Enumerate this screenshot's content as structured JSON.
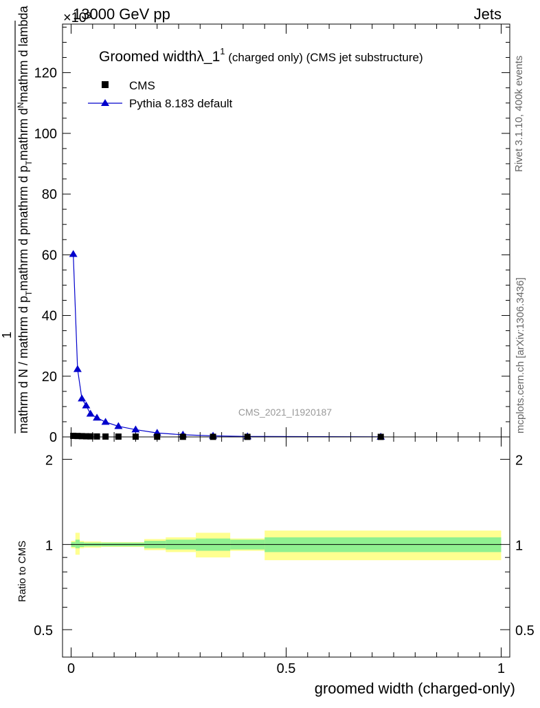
{
  "header": {
    "energy_label": "13000 GeV pp",
    "process_label": "Jets",
    "exponent_label": "×10³"
  },
  "side_labels": {
    "rivet": "Rivet 3.1.10,  400k events",
    "source": "mcplots.cern.ch [arXiv:1306.3436]"
  },
  "watermark": "CMS_2021_I1920187",
  "colors": {
    "mc_line": "#0000cc",
    "band_stat": "#90f090",
    "band_total": "#ffff90"
  },
  "chart_data": [
    {
      "type": "line",
      "panel": "main",
      "title_main": "Groomed width",
      "title_math": "λ_1",
      "title_sup": "1",
      "title_rest": " (charged only) (CMS jet substructure)",
      "xlabel": "",
      "ylabel_numerator_top": "mathrm d",
      "ylabel_numerator_N": "N",
      "ylabel_numerator_bottom": "mathrm d p",
      "ylabel_numerator_T": "T",
      "ylabel_numerator_end": "mathrm d lambda",
      "ylabel_one": "1",
      "ylabel_denominator": "mathrm d N / mathrm d p",
      "ylabel_denominator_T": "T",
      "ylabel_denominator_end": "mathrm d p",
      "xlim": [
        -0.02,
        1.02
      ],
      "ylim": [
        0,
        136
      ],
      "y_ticks": [
        0,
        20,
        40,
        60,
        80,
        100,
        120
      ],
      "y_tick_labels": [
        "0",
        "20",
        "40",
        "60",
        "80",
        "100",
        "120"
      ],
      "legend_position": "top-left",
      "series": [
        {
          "name": "CMS",
          "marker": "square",
          "x": [
            0.005,
            0.015,
            0.025,
            0.035,
            0.045,
            0.06,
            0.08,
            0.11,
            0.15,
            0.2,
            0.26,
            0.33,
            0.41,
            0.72
          ],
          "y": [
            0.35,
            0.3,
            0.25,
            0.2,
            0.18,
            0.15,
            0.12,
            0.1,
            0.08,
            0.06,
            0.04,
            0.03,
            0.02,
            0.01
          ]
        },
        {
          "name": "Pythia 8.183 default",
          "marker": "triangle",
          "x": [
            0.005,
            0.015,
            0.025,
            0.035,
            0.045,
            0.06,
            0.08,
            0.11,
            0.15,
            0.2,
            0.26,
            0.33,
            0.41,
            0.72
          ],
          "y": [
            60.2,
            22.3,
            12.6,
            10.3,
            7.6,
            6.3,
            4.9,
            3.5,
            2.4,
            1.3,
            0.7,
            0.35,
            0.15,
            0.03
          ],
          "err": [
            1.0,
            0.3,
            0.3,
            0.2,
            0.15,
            0.1,
            0.1,
            0.05,
            0.05,
            0.03,
            0.02,
            0.01,
            0.01,
            0.005
          ]
        }
      ]
    },
    {
      "type": "area",
      "panel": "ratio",
      "ylabel": "Ratio to CMS",
      "xlabel": "groomed width (charged-only)",
      "xlim": [
        -0.02,
        1.02
      ],
      "ylim": [
        0.4,
        2.4
      ],
      "log_y": true,
      "x_ticks": [
        0,
        0.5,
        1
      ],
      "x_tick_labels": [
        "0",
        "0.5",
        "1"
      ],
      "y_ticks": [
        0.5,
        1,
        2
      ],
      "y_tick_labels": [
        "0.5",
        "1",
        "2"
      ],
      "bins": [
        {
          "x0": 0.0,
          "x1": 0.01,
          "stat": [
            0.98,
            1.02
          ],
          "total": [
            0.97,
            1.03
          ]
        },
        {
          "x0": 0.01,
          "x1": 0.02,
          "stat": [
            0.97,
            1.04
          ],
          "total": [
            0.92,
            1.1
          ]
        },
        {
          "x0": 0.02,
          "x1": 0.03,
          "stat": [
            0.98,
            1.02
          ],
          "total": [
            0.97,
            1.03
          ]
        },
        {
          "x0": 0.03,
          "x1": 0.07,
          "stat": [
            0.985,
            1.015
          ],
          "total": [
            0.975,
            1.025
          ]
        },
        {
          "x0": 0.07,
          "x1": 0.17,
          "stat": [
            0.985,
            1.015
          ],
          "total": [
            0.98,
            1.02
          ]
        },
        {
          "x0": 0.17,
          "x1": 0.22,
          "stat": [
            0.97,
            1.03
          ],
          "total": [
            0.955,
            1.045
          ]
        },
        {
          "x0": 0.22,
          "x1": 0.29,
          "stat": [
            0.96,
            1.04
          ],
          "total": [
            0.94,
            1.06
          ]
        },
        {
          "x0": 0.29,
          "x1": 0.37,
          "stat": [
            0.95,
            1.05
          ],
          "total": [
            0.9,
            1.1
          ]
        },
        {
          "x0": 0.37,
          "x1": 0.45,
          "stat": [
            0.96,
            1.04
          ],
          "total": [
            0.95,
            1.05
          ]
        },
        {
          "x0": 0.45,
          "x1": 1.0,
          "stat": [
            0.94,
            1.06
          ],
          "total": [
            0.88,
            1.12
          ]
        }
      ],
      "series": [
        {
          "name": "",
          "x": [
            0.0,
            1.0
          ],
          "y": [
            1.0,
            1.0
          ]
        }
      ]
    }
  ]
}
